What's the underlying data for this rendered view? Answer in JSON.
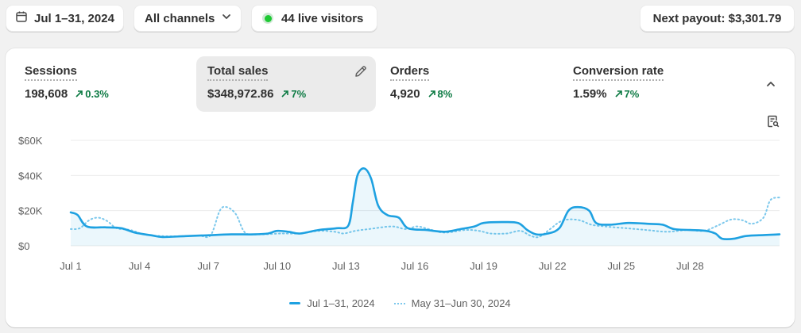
{
  "toolbar": {
    "date_range": "Jul 1–31, 2024",
    "channels": "All channels",
    "live_visitors": "44 live visitors",
    "payout": "Next payout: $3,301.79"
  },
  "metrics": [
    {
      "title": "Sessions",
      "value": "198,608",
      "change": "0.3%"
    },
    {
      "title": "Total sales",
      "value": "$348,972.86",
      "change": "7%"
    },
    {
      "title": "Orders",
      "value": "4,920",
      "change": "8%"
    },
    {
      "title": "Conversion rate",
      "value": "1.59%",
      "change": "7%"
    }
  ],
  "colors": {
    "current": "#1ea1e1",
    "previous": "#7cc8ec",
    "positive": "#0c7a43",
    "live": "#1ec933"
  },
  "chart_data": {
    "type": "line",
    "ylim": [
      0,
      60000
    ],
    "y_ticks": [
      {
        "value": 0,
        "label": "$0"
      },
      {
        "value": 20000,
        "label": "$20K"
      },
      {
        "value": 40000,
        "label": "$40K"
      },
      {
        "value": 60000,
        "label": "$60K"
      }
    ],
    "x_ticks": [
      {
        "day": 1,
        "label": "Jul 1"
      },
      {
        "day": 4,
        "label": "Jul 4"
      },
      {
        "day": 7,
        "label": "Jul 7"
      },
      {
        "day": 10,
        "label": "Jul 10"
      },
      {
        "day": 13,
        "label": "Jul 13"
      },
      {
        "day": 16,
        "label": "Jul 16"
      },
      {
        "day": 19,
        "label": "Jul 19"
      },
      {
        "day": 22,
        "label": "Jul 22"
      },
      {
        "day": 25,
        "label": "Jul 25"
      },
      {
        "day": 28,
        "label": "Jul 28"
      }
    ],
    "series": [
      {
        "name": "Jul 1–31, 2024",
        "style": "solid",
        "points": [
          [
            1.0,
            19000
          ],
          [
            1.3,
            17500
          ],
          [
            1.7,
            11000
          ],
          [
            2.5,
            10500
          ],
          [
            3.2,
            10000
          ],
          [
            3.8,
            7500
          ],
          [
            4.5,
            6000
          ],
          [
            5.0,
            5000
          ],
          [
            6.0,
            5500
          ],
          [
            7.0,
            6000
          ],
          [
            8.0,
            6500
          ],
          [
            9.0,
            6500
          ],
          [
            9.6,
            7000
          ],
          [
            10.0,
            8500
          ],
          [
            10.5,
            8000
          ],
          [
            11.0,
            7000
          ],
          [
            11.8,
            9000
          ],
          [
            12.6,
            10000
          ],
          [
            13.1,
            11500
          ],
          [
            13.3,
            25000
          ],
          [
            13.5,
            40000
          ],
          [
            13.8,
            44000
          ],
          [
            14.1,
            38000
          ],
          [
            14.4,
            23000
          ],
          [
            14.8,
            17500
          ],
          [
            15.3,
            16000
          ],
          [
            15.7,
            10000
          ],
          [
            16.5,
            9000
          ],
          [
            17.3,
            8000
          ],
          [
            18.0,
            9500
          ],
          [
            18.6,
            11000
          ],
          [
            19.0,
            13000
          ],
          [
            19.8,
            13500
          ],
          [
            20.5,
            13000
          ],
          [
            20.9,
            9000
          ],
          [
            21.3,
            6500
          ],
          [
            21.8,
            7000
          ],
          [
            22.3,
            10000
          ],
          [
            22.7,
            20000
          ],
          [
            23.1,
            22000
          ],
          [
            23.6,
            20000
          ],
          [
            23.9,
            13000
          ],
          [
            24.5,
            12000
          ],
          [
            25.3,
            13000
          ],
          [
            26.2,
            12500
          ],
          [
            26.8,
            12000
          ],
          [
            27.3,
            9500
          ],
          [
            28.0,
            9000
          ],
          [
            28.7,
            8500
          ],
          [
            29.1,
            7000
          ],
          [
            29.4,
            4000
          ],
          [
            29.9,
            4000
          ],
          [
            30.4,
            5500
          ],
          [
            31.0,
            6000
          ],
          [
            31.9,
            6500
          ]
        ]
      },
      {
        "name": "May 31–Jun 30, 2024",
        "style": "dotted",
        "points": [
          [
            1.0,
            9500
          ],
          [
            1.4,
            10000
          ],
          [
            1.8,
            14500
          ],
          [
            2.2,
            16000
          ],
          [
            2.6,
            14000
          ],
          [
            3.0,
            10000
          ],
          [
            3.6,
            9000
          ],
          [
            4.2,
            6500
          ],
          [
            5.0,
            5500
          ],
          [
            6.0,
            5500
          ],
          [
            6.6,
            5800
          ],
          [
            7.1,
            6000
          ],
          [
            7.5,
            20000
          ],
          [
            7.8,
            22000
          ],
          [
            8.2,
            18000
          ],
          [
            8.6,
            7500
          ],
          [
            9.2,
            6500
          ],
          [
            10.2,
            7000
          ],
          [
            11.0,
            7000
          ],
          [
            11.8,
            8500
          ],
          [
            12.5,
            8000
          ],
          [
            12.9,
            7000
          ],
          [
            13.4,
            8500
          ],
          [
            14.0,
            9500
          ],
          [
            15.0,
            11000
          ],
          [
            15.6,
            9500
          ],
          [
            16.1,
            11000
          ],
          [
            16.6,
            9500
          ],
          [
            17.3,
            7500
          ],
          [
            18.2,
            9000
          ],
          [
            18.8,
            8500
          ],
          [
            19.3,
            7000
          ],
          [
            20.0,
            7000
          ],
          [
            20.6,
            8500
          ],
          [
            21.0,
            6000
          ],
          [
            21.4,
            5000
          ],
          [
            21.9,
            9500
          ],
          [
            22.3,
            13500
          ],
          [
            22.7,
            15000
          ],
          [
            23.2,
            14500
          ],
          [
            23.7,
            12000
          ],
          [
            24.3,
            11000
          ],
          [
            25.2,
            10000
          ],
          [
            26.1,
            9000
          ],
          [
            27.0,
            8000
          ],
          [
            27.9,
            9000
          ],
          [
            28.6,
            8500
          ],
          [
            29.2,
            11500
          ],
          [
            29.8,
            15000
          ],
          [
            30.3,
            14500
          ],
          [
            30.7,
            12500
          ],
          [
            31.2,
            16000
          ],
          [
            31.5,
            26000
          ],
          [
            31.9,
            27500
          ]
        ]
      }
    ]
  }
}
